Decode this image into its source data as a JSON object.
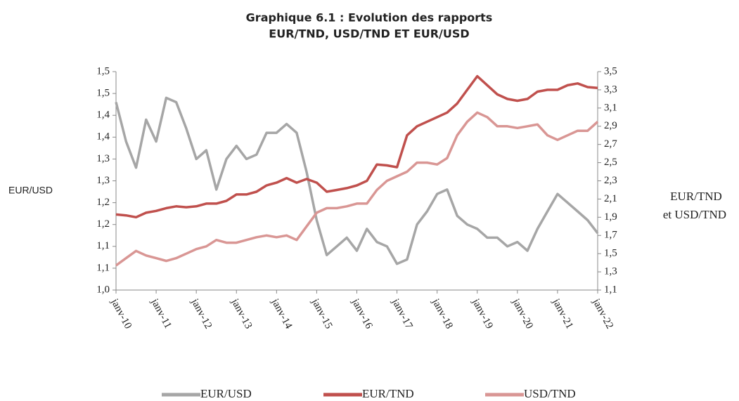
{
  "chart_data": {
    "type": "line",
    "title": [
      "Graphique 6.1 : Evolution des rapports",
      "EUR/TND, USD/TND ET EUR/USD"
    ],
    "ylabel": "EUR/USD",
    "y2label": [
      "EUR/TND",
      "et USD/TND"
    ],
    "x": [
      "2010-01",
      "2010-04",
      "2010-07",
      "2010-10",
      "2011-01",
      "2011-04",
      "2011-07",
      "2011-10",
      "2012-01",
      "2012-04",
      "2012-07",
      "2012-10",
      "2013-01",
      "2013-04",
      "2013-07",
      "2013-10",
      "2014-01",
      "2014-04",
      "2014-07",
      "2014-10",
      "2015-01",
      "2015-04",
      "2015-07",
      "2015-10",
      "2016-01",
      "2016-04",
      "2016-07",
      "2016-10",
      "2017-01",
      "2017-04",
      "2017-07",
      "2017-10",
      "2018-01",
      "2018-04",
      "2018-07",
      "2018-10",
      "2019-01",
      "2019-04",
      "2019-07",
      "2019-10",
      "2020-01",
      "2020-04",
      "2020-07",
      "2020-10",
      "2021-01",
      "2021-04",
      "2021-07",
      "2021-10",
      "2022-01"
    ],
    "xlim": [
      "2010-01",
      "2022-01"
    ],
    "xticks": [
      {
        "value": "2010-01",
        "label": "janv-10"
      },
      {
        "value": "2011-01",
        "label": "janv-11"
      },
      {
        "value": "2012-01",
        "label": "janv-12"
      },
      {
        "value": "2013-01",
        "label": "janv-13"
      },
      {
        "value": "2014-01",
        "label": "janv-14"
      },
      {
        "value": "2015-01",
        "label": "janv-15"
      },
      {
        "value": "2016-01",
        "label": "janv-16"
      },
      {
        "value": "2017-01",
        "label": "janv-17"
      },
      {
        "value": "2018-01",
        "label": "janv-18"
      },
      {
        "value": "2019-01",
        "label": "janv-19"
      },
      {
        "value": "2020-01",
        "label": "janv-20"
      },
      {
        "value": "2021-01",
        "label": "janv-21"
      },
      {
        "value": "2022-01",
        "label": "janv-22"
      }
    ],
    "ylim": [
      1.0,
      1.5
    ],
    "yticks": [
      {
        "value": 1.0,
        "label": "1,0"
      },
      {
        "value": 1.05,
        "label": "1,1"
      },
      {
        "value": 1.1,
        "label": "1,1"
      },
      {
        "value": 1.15,
        "label": "1,2"
      },
      {
        "value": 1.2,
        "label": "1,2"
      },
      {
        "value": 1.25,
        "label": "1,3"
      },
      {
        "value": 1.3,
        "label": "1,3"
      },
      {
        "value": 1.35,
        "label": "1,4"
      },
      {
        "value": 1.4,
        "label": "1,4"
      },
      {
        "value": 1.45,
        "label": "1,5"
      },
      {
        "value": 1.5,
        "label": "1,5"
      }
    ],
    "y2lim": [
      1.1,
      3.5
    ],
    "y2ticks": [
      {
        "value": 1.1,
        "label": "1,1"
      },
      {
        "value": 1.3,
        "label": "1,3"
      },
      {
        "value": 1.5,
        "label": "1,5"
      },
      {
        "value": 1.7,
        "label": "1,7"
      },
      {
        "value": 1.9,
        "label": "1,9"
      },
      {
        "value": 2.1,
        "label": "2,1"
      },
      {
        "value": 2.3,
        "label": "2,3"
      },
      {
        "value": 2.5,
        "label": "2,5"
      },
      {
        "value": 2.7,
        "label": "2,7"
      },
      {
        "value": 2.9,
        "label": "2,9"
      },
      {
        "value": 3.1,
        "label": "3,1"
      },
      {
        "value": 3.3,
        "label": "3,3"
      },
      {
        "value": 3.5,
        "label": "3,5"
      }
    ],
    "series": [
      {
        "name": "EUR/USD",
        "color": "#a6a6a6",
        "values": [
          1.43,
          1.34,
          1.28,
          1.39,
          1.34,
          1.44,
          1.43,
          1.37,
          1.3,
          1.32,
          1.23,
          1.3,
          1.33,
          1.3,
          1.31,
          1.36,
          1.36,
          1.38,
          1.36,
          1.27,
          1.16,
          1.08,
          1.1,
          1.12,
          1.09,
          1.14,
          1.11,
          1.1,
          1.06,
          1.07,
          1.15,
          1.18,
          1.22,
          1.23,
          1.17,
          1.15,
          1.14,
          1.12,
          1.12,
          1.1,
          1.11,
          1.09,
          1.14,
          1.18,
          1.22,
          1.2,
          1.18,
          1.16,
          1.13
        ]
      },
      {
        "name": "EUR/TND",
        "color": "#c0504d",
        "axis": "y2",
        "values": [
          1.93,
          1.92,
          1.9,
          1.95,
          1.97,
          2.0,
          2.02,
          2.01,
          2.02,
          2.05,
          2.05,
          2.08,
          2.15,
          2.15,
          2.18,
          2.25,
          2.28,
          2.33,
          2.28,
          2.32,
          2.28,
          2.18,
          2.2,
          2.22,
          2.25,
          2.3,
          2.48,
          2.47,
          2.45,
          2.8,
          2.9,
          2.95,
          3.0,
          3.05,
          3.15,
          3.3,
          3.45,
          3.35,
          3.25,
          3.2,
          3.18,
          3.2,
          3.28,
          3.3,
          3.3,
          3.35,
          3.37,
          3.33,
          3.32
        ]
      },
      {
        "name": "USD/TND",
        "color": "#d99694",
        "axis": "y2",
        "values": [
          1.37,
          1.45,
          1.53,
          1.48,
          1.45,
          1.42,
          1.45,
          1.5,
          1.55,
          1.58,
          1.65,
          1.62,
          1.62,
          1.65,
          1.68,
          1.7,
          1.68,
          1.7,
          1.65,
          1.8,
          1.95,
          2.0,
          2.0,
          2.02,
          2.05,
          2.05,
          2.2,
          2.3,
          2.35,
          2.4,
          2.5,
          2.5,
          2.48,
          2.55,
          2.8,
          2.95,
          3.05,
          3.0,
          2.9,
          2.9,
          2.88,
          2.9,
          2.92,
          2.8,
          2.75,
          2.8,
          2.85,
          2.85,
          2.95
        ]
      }
    ]
  }
}
